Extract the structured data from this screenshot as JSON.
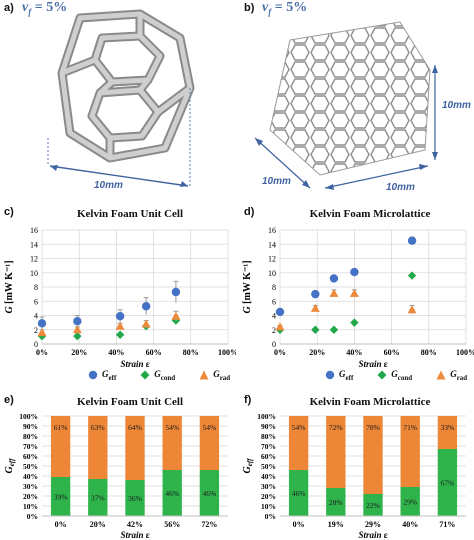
{
  "panels": {
    "a": {
      "label": "a)",
      "vf_symbol": "v",
      "vf_sub": "f",
      "vf_value": "= 5%",
      "dim_x": "10mm"
    },
    "b": {
      "label": "b)",
      "vf_symbol": "v",
      "vf_sub": "f",
      "vf_value": "= 5%",
      "dim_x": "10mm",
      "dim_y": "10mm",
      "dim_z": "10mm"
    },
    "c": {
      "label": "c)"
    },
    "d": {
      "label": "d)"
    },
    "e": {
      "label": "e)"
    },
    "f": {
      "label": "f)"
    }
  },
  "colors": {
    "eff": "#4472c4",
    "cond": "#22a84a",
    "rad": "#ed8a3c",
    "bar_cond": "#2fb44c",
    "bar_rad": "#ed8636",
    "grid": "#d9d9d9",
    "error": "#9c9c9c"
  },
  "legend_cd": [
    {
      "symbol": "G",
      "sub": "eff",
      "marker": "circle",
      "color": "#4472c4"
    },
    {
      "symbol": "G",
      "sub": "cond",
      "marker": "diamond",
      "color": "#22a84a"
    },
    {
      "symbol": "G",
      "sub": "rad",
      "marker": "triangle",
      "color": "#ed8a3c"
    }
  ],
  "chart_data": [
    {
      "id": "c",
      "type": "scatter",
      "title": "Kelvin Foam Unit Cell",
      "xlabel": "Strain ε",
      "ylabel": "G [mW K⁻¹]",
      "xlim": [
        0,
        100
      ],
      "ylim": [
        0,
        16
      ],
      "xticks": [
        "0%",
        "20%",
        "40%",
        "60%",
        "80%",
        "100%"
      ],
      "yticks": [
        0,
        2,
        4,
        6,
        8,
        10,
        12,
        14,
        16
      ],
      "grid": true,
      "series": [
        {
          "name": "Geff",
          "marker": "circle",
          "x": [
            0,
            19,
            42,
            56,
            72
          ],
          "y": [
            2.9,
            3.2,
            3.9,
            5.3,
            7.3
          ],
          "err": [
            0.9,
            0.8,
            0.9,
            1.2,
            1.5
          ]
        },
        {
          "name": "Gcond",
          "marker": "diamond",
          "x": [
            0,
            19,
            42,
            56,
            72
          ],
          "y": [
            1.1,
            1.1,
            1.3,
            2.5,
            3.3
          ],
          "err": [
            0,
            0,
            0,
            0,
            0
          ]
        },
        {
          "name": "Grad",
          "marker": "triangle",
          "x": [
            0,
            19,
            42,
            56,
            72
          ],
          "y": [
            1.6,
            2.0,
            2.5,
            2.8,
            3.9
          ],
          "err": [
            0.4,
            0.4,
            0.4,
            0.5,
            0.7
          ]
        }
      ]
    },
    {
      "id": "d",
      "type": "scatter",
      "title": "Kelvin Foam Microlattice",
      "xlabel": "Strain ε",
      "ylabel": "G [mW K⁻¹]",
      "xlim": [
        0,
        100
      ],
      "ylim": [
        0,
        16
      ],
      "xticks": [
        "0%",
        "20%",
        "40%",
        "60%",
        "80%",
        "100%"
      ],
      "yticks": [
        0,
        2,
        4,
        6,
        8,
        10,
        12,
        14,
        16
      ],
      "grid": true,
      "series": [
        {
          "name": "Geff",
          "marker": "circle",
          "x": [
            0,
            19,
            29,
            40,
            71
          ],
          "y": [
            4.5,
            7.0,
            9.2,
            10.1,
            14.5
          ],
          "err": [
            0.3,
            0.3,
            0.4,
            0.4,
            0.5
          ]
        },
        {
          "name": "Gcond",
          "marker": "diamond",
          "x": [
            0,
            19,
            29,
            40,
            71
          ],
          "y": [
            2.0,
            2.0,
            2.0,
            3.0,
            9.6
          ],
          "err": [
            0,
            0,
            0,
            0,
            0
          ]
        },
        {
          "name": "Grad",
          "marker": "triangle",
          "x": [
            0,
            19,
            29,
            40,
            71
          ],
          "y": [
            2.4,
            5.0,
            7.1,
            7.1,
            4.8
          ],
          "err": [
            0.2,
            0.4,
            0.5,
            0.5,
            0.6
          ]
        }
      ]
    },
    {
      "id": "e",
      "type": "bar",
      "stacked": true,
      "title": "Kelvin Foam Unit Cell",
      "xlabel": "Strain ε",
      "ylabel": "Geff",
      "ylim": [
        0,
        100
      ],
      "yticks": [
        "0%",
        "10%",
        "20%",
        "30%",
        "40%",
        "50%",
        "60%",
        "70%",
        "80%",
        "90%",
        "100%"
      ],
      "categories": [
        "0%",
        "20%",
        "42%",
        "56%",
        "72%"
      ],
      "series": [
        {
          "name": "cond",
          "values": [
            39,
            37,
            36,
            46,
            46
          ],
          "labels": [
            "39%",
            "37%",
            "36%",
            "46%",
            "46%"
          ]
        },
        {
          "name": "rad",
          "values": [
            61,
            63,
            64,
            54,
            54
          ],
          "labels": [
            "61%",
            "63%",
            "64%",
            "54%",
            "54%"
          ]
        }
      ]
    },
    {
      "id": "f",
      "type": "bar",
      "stacked": true,
      "title": "Kelvin Foam Microlattice",
      "xlabel": "Strain ε",
      "ylabel": "Geff",
      "ylim": [
        0,
        100
      ],
      "yticks": [
        "0%",
        "10%",
        "20%",
        "30%",
        "40%",
        "50%",
        "60%",
        "70%",
        "80%",
        "90%",
        "100%"
      ],
      "categories": [
        "0%",
        "19%",
        "29%",
        "40%",
        "71%"
      ],
      "series": [
        {
          "name": "cond",
          "values": [
            46,
            28,
            22,
            29,
            67
          ],
          "labels": [
            "46%",
            "28%",
            "22%",
            "29%",
            "67%"
          ]
        },
        {
          "name": "rad",
          "values": [
            54,
            72,
            78,
            71,
            33
          ],
          "labels": [
            "54%",
            "72%",
            "78%",
            "71%",
            "33%"
          ]
        }
      ]
    }
  ]
}
